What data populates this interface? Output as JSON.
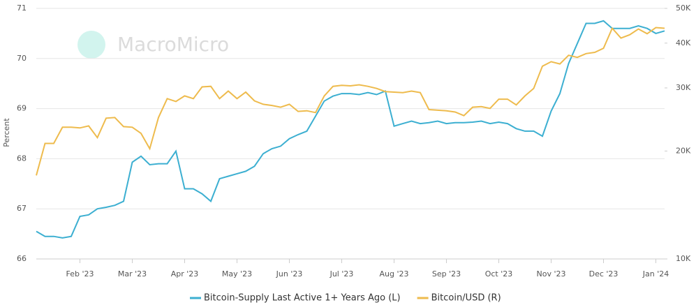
{
  "chart_data": {
    "type": "line",
    "watermark": "MacroMicro",
    "ylabel": "Percent",
    "categories": [
      null,
      null,
      null,
      null,
      null,
      "Feb '23",
      null,
      null,
      null,
      null,
      null,
      "Mar '23",
      null,
      null,
      null,
      null,
      null,
      "Apr '23",
      null,
      null,
      null,
      null,
      null,
      "May '23",
      null,
      null,
      null,
      null,
      null,
      "Jun '23",
      null,
      null,
      null,
      null,
      null,
      "Jul '23",
      null,
      null,
      null,
      null,
      null,
      "Aug '23",
      null,
      null,
      null,
      null,
      null,
      "Sep '23",
      null,
      null,
      null,
      null,
      null,
      "Oct '23",
      null,
      null,
      null,
      null,
      null,
      "Nov '23",
      null,
      null,
      null,
      null,
      null,
      "Dec '23",
      null,
      null,
      null,
      null,
      null,
      "Jan '24",
      null
    ],
    "ylim": [
      66,
      71
    ],
    "yticks": [
      66,
      67,
      68,
      69,
      70,
      71
    ],
    "y2lim": [
      10000,
      50000
    ],
    "y2log": true,
    "y2ticks": [
      {
        "value": 10000,
        "label": "10K"
      },
      {
        "value": 20000,
        "label": "20K"
      },
      {
        "value": 30000,
        "label": "30K"
      },
      {
        "value": 40000,
        "label": "40K"
      },
      {
        "value": 50000,
        "label": "50K"
      }
    ],
    "grid": true,
    "series": [
      {
        "name": "Bitcoin-Supply Last Active 1+ Years Ago (L)",
        "color": "#3cafd1",
        "axis": "y",
        "values": [
          66.55,
          66.45,
          66.45,
          66.42,
          66.45,
          66.85,
          66.88,
          67.0,
          67.03,
          67.07,
          67.15,
          67.93,
          68.05,
          67.88,
          67.9,
          67.9,
          68.15,
          67.4,
          67.4,
          67.3,
          67.15,
          67.6,
          67.65,
          67.7,
          67.75,
          67.85,
          68.1,
          68.2,
          68.25,
          68.4,
          68.48,
          68.55,
          68.85,
          69.15,
          69.25,
          69.3,
          69.3,
          69.28,
          69.32,
          69.28,
          69.35,
          68.65,
          68.7,
          68.75,
          68.7,
          68.72,
          68.75,
          68.7,
          68.72,
          68.72,
          68.73,
          68.75,
          68.7,
          68.73,
          68.7,
          68.6,
          68.55,
          68.55,
          68.45,
          68.95,
          69.3,
          69.9,
          70.3,
          70.7,
          70.7,
          70.75,
          70.6,
          70.6,
          70.6,
          70.65,
          70.6,
          70.5,
          70.55
        ]
      },
      {
        "name": "Bitcoin/USD (R)",
        "color": "#eebb4d",
        "axis": "y2",
        "values": [
          17100,
          21000,
          21000,
          23300,
          23300,
          23200,
          23500,
          21800,
          24700,
          24800,
          23400,
          23300,
          22400,
          20300,
          24800,
          28000,
          27500,
          28500,
          28000,
          30200,
          30300,
          28000,
          29400,
          28000,
          29200,
          27600,
          27000,
          26800,
          26500,
          27000,
          25800,
          25900,
          25600,
          28500,
          30300,
          30500,
          30400,
          30600,
          30300,
          29900,
          29300,
          29200,
          29100,
          29400,
          29100,
          26100,
          26000,
          25900,
          25700,
          25100,
          26500,
          26600,
          26300,
          27900,
          27900,
          26900,
          28500,
          29900,
          34500,
          35500,
          35000,
          37000,
          36500,
          37400,
          37700,
          38700,
          44000,
          41300,
          42200,
          43800,
          42500,
          44200,
          44000
        ]
      }
    ]
  }
}
